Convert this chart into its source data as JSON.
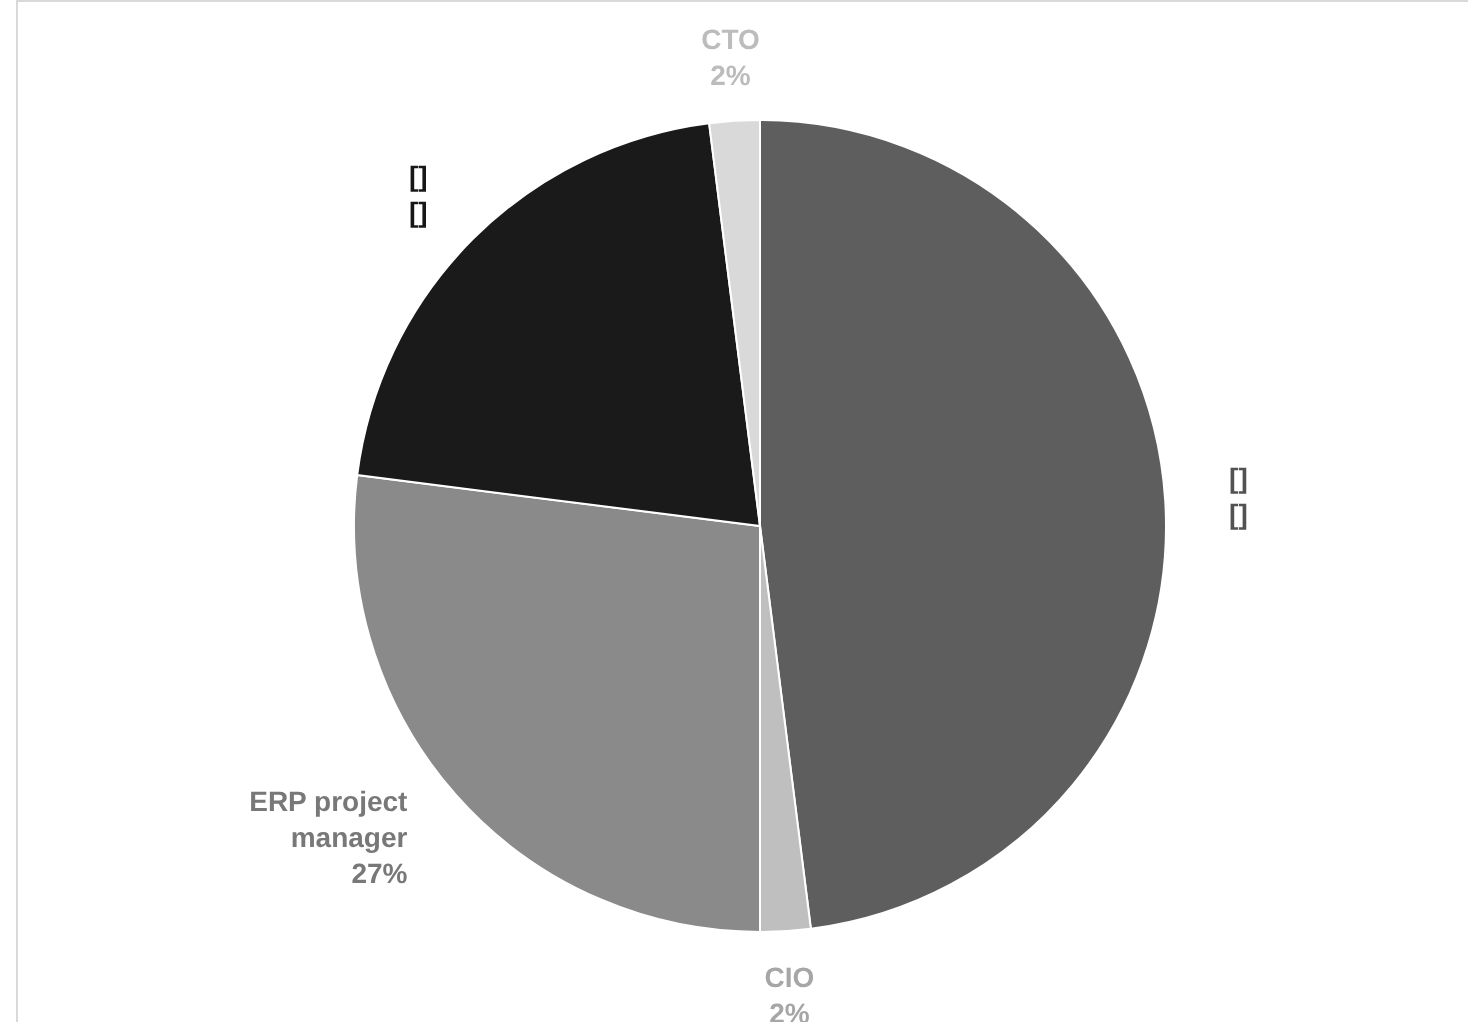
{
  "chart_data": {
    "type": "pie",
    "categories": [
      "[]",
      "CIO",
      "ERP project manager",
      "[]",
      "CTO"
    ],
    "values": [
      48,
      2,
      27,
      21,
      2
    ],
    "value_labels": [
      "[]",
      "2%",
      "27%",
      "[]",
      "2%"
    ],
    "colors": [
      "#5e5e5e",
      "#bfbfbf",
      "#8a8a8a",
      "#1a1a1a",
      "#d9d9d9"
    ]
  }
}
